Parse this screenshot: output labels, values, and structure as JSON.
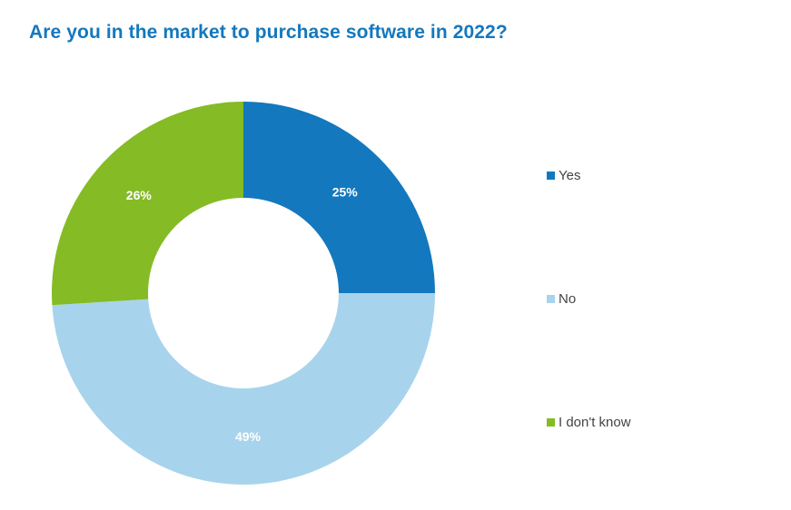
{
  "chart_data": {
    "type": "pie",
    "title": "Are you in the market to purchase software in 2022?",
    "categories": [
      "Yes",
      "No",
      "I don't know"
    ],
    "values": [
      25,
      49,
      26
    ],
    "value_labels": [
      "25%",
      "49%",
      "26%"
    ],
    "colors": [
      "#1378be",
      "#a8d3ec",
      "#85bb25"
    ],
    "donut": true,
    "legend": "right"
  }
}
